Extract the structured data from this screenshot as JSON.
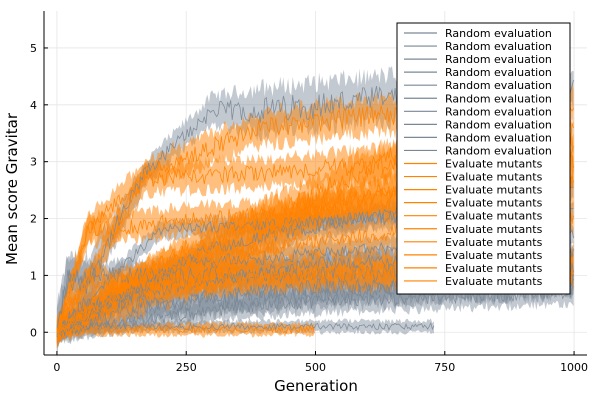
{
  "chart_data": {
    "type": "line",
    "title": "",
    "xlabel": "Generation",
    "ylabel": "Mean score Gravitar",
    "xlim": [
      -25,
      1025
    ],
    "ylim": [
      -0.4,
      5.65
    ],
    "xticks": [
      0,
      250,
      500,
      750,
      1000
    ],
    "yticks": [
      0,
      1,
      2,
      3,
      4,
      5
    ],
    "grid": true,
    "legend_position": "top-right",
    "colors": {
      "random": "#7a8896",
      "mutants": "#ff8200",
      "grid": "#e6e6e6"
    },
    "series": [
      {
        "name": "Random evaluation",
        "group": "random",
        "x": [
          0,
          20,
          60,
          170,
          300,
          400,
          730,
          1000
        ],
        "y": [
          0,
          0.9,
          0.9,
          2.8,
          3.9,
          3.9,
          4.2,
          4.3
        ],
        "band": [
          0.8,
          0.8,
          0.8,
          0.4,
          0.5,
          0.8,
          0.8,
          0.8
        ]
      },
      {
        "name": "Random evaluation",
        "group": "random",
        "x": [
          0,
          20,
          300,
          450,
          730,
          1000
        ],
        "y": [
          0,
          1.0,
          1.0,
          1.0,
          1.1,
          1.2
        ],
        "band": [
          0.8,
          0.5,
          0.5,
          0.5,
          0.6,
          0.6
        ]
      },
      {
        "name": "Random evaluation",
        "group": "random",
        "x": [
          0,
          50,
          200,
          400,
          730,
          1000
        ],
        "y": [
          0,
          0.5,
          0.5,
          0.6,
          0.8,
          0.9
        ],
        "band": [
          0.4,
          0.5,
          0.5,
          0.5,
          0.5,
          0.5
        ]
      },
      {
        "name": "Random evaluation",
        "group": "random",
        "x": [
          0,
          150,
          300,
          500,
          730,
          1000
        ],
        "y": [
          0,
          0.4,
          0.6,
          0.8,
          0.8,
          0.9
        ],
        "band": [
          0.4,
          0.4,
          0.5,
          0.5,
          0.5,
          0.5
        ]
      },
      {
        "name": "Random evaluation",
        "group": "random",
        "x": [
          0,
          730
        ],
        "y": [
          0.1,
          0.1
        ],
        "band": [
          0.2,
          0.2
        ]
      },
      {
        "name": "Random evaluation",
        "group": "random",
        "x": [
          0,
          200,
          600,
          1000
        ],
        "y": [
          0,
          1.8,
          2.0,
          2.1
        ],
        "band": [
          0.3,
          0.3,
          0.4,
          0.4
        ]
      },
      {
        "name": "Random evaluation",
        "group": "random",
        "x": [
          0,
          300,
          700,
          1000
        ],
        "y": [
          0,
          1.5,
          2.2,
          2.5
        ],
        "band": [
          0.3,
          0.4,
          0.4,
          0.4
        ]
      },
      {
        "name": "Random evaluation",
        "group": "random",
        "x": [
          0,
          250,
          800,
          1000
        ],
        "y": [
          0,
          1.2,
          1.6,
          1.7
        ],
        "band": [
          0.3,
          0.4,
          0.4,
          0.4
        ]
      },
      {
        "name": "Random evaluation",
        "group": "random",
        "x": [
          0,
          100,
          500,
          1000
        ],
        "y": [
          0,
          0.6,
          1.2,
          1.4
        ],
        "band": [
          0.3,
          0.4,
          0.4,
          0.4
        ]
      },
      {
        "name": "Random evaluation",
        "group": "random",
        "x": [
          0,
          400,
          1000
        ],
        "y": [
          0,
          0.5,
          0.7
        ],
        "band": [
          0.3,
          0.4,
          0.4
        ]
      },
      {
        "name": "Evaluate mutants",
        "group": "mutants",
        "x": [
          0,
          60,
          170,
          200,
          400,
          600,
          800,
          1000
        ],
        "y": [
          0,
          1.8,
          2.8,
          2.9,
          3.6,
          3.8,
          3.9,
          4.0
        ],
        "band": [
          0.4,
          0.5,
          0.4,
          0.5,
          0.6,
          0.6,
          0.6,
          0.6
        ]
      },
      {
        "name": "Evaluate mutants",
        "group": "mutants",
        "x": [
          0,
          60,
          300,
          600,
          1000
        ],
        "y": [
          0,
          0.9,
          1.0,
          1.1,
          1.2
        ],
        "band": [
          0.4,
          0.4,
          0.5,
          0.6,
          0.6
        ]
      },
      {
        "name": "Evaluate mutants",
        "group": "mutants",
        "x": [
          0,
          60,
          300,
          600,
          1000
        ],
        "y": [
          0,
          1.8,
          2.0,
          2.2,
          2.5
        ],
        "band": [
          0.4,
          0.5,
          0.5,
          0.5,
          0.6
        ]
      },
      {
        "name": "Evaluate mutants",
        "group": "mutants",
        "x": [
          0,
          170,
          400,
          700,
          1000
        ],
        "y": [
          0,
          2.7,
          2.8,
          3.0,
          3.2
        ],
        "band": [
          0.4,
          0.5,
          0.5,
          0.6,
          0.6
        ]
      },
      {
        "name": "Evaluate mutants",
        "group": "mutants",
        "x": [
          0,
          300,
          500,
          800,
          1000
        ],
        "y": [
          0,
          1.0,
          2.2,
          2.6,
          2.8
        ],
        "band": [
          0.3,
          0.6,
          0.6,
          0.6,
          0.6
        ]
      },
      {
        "name": "Evaluate mutants",
        "group": "mutants",
        "x": [
          0,
          200,
          500,
          800,
          1000
        ],
        "y": [
          0,
          1.2,
          1.6,
          1.9,
          2.0
        ],
        "band": [
          0.3,
          0.5,
          0.5,
          0.6,
          0.6
        ]
      },
      {
        "name": "Evaluate mutants",
        "group": "mutants",
        "x": [
          0,
          100,
          500,
          1000
        ],
        "y": [
          0,
          0.8,
          1.0,
          1.1
        ],
        "band": [
          0.3,
          0.4,
          0.5,
          0.5
        ]
      },
      {
        "name": "Evaluate mutants",
        "group": "mutants",
        "x": [
          0,
          250,
          600,
          1000
        ],
        "y": [
          0,
          1.5,
          2.4,
          3.0
        ],
        "band": [
          0.3,
          0.5,
          0.6,
          0.6
        ]
      },
      {
        "name": "Evaluate mutants",
        "group": "mutants",
        "x": [
          0,
          400,
          700,
          1000
        ],
        "y": [
          0,
          2.0,
          3.3,
          3.5
        ],
        "band": [
          0.3,
          0.6,
          0.6,
          0.6
        ]
      },
      {
        "name": "Evaluate mutants",
        "group": "mutants",
        "x": [
          0,
          500
        ],
        "y": [
          0.05,
          0.05
        ],
        "band": [
          0.2,
          0.2
        ]
      }
    ]
  }
}
